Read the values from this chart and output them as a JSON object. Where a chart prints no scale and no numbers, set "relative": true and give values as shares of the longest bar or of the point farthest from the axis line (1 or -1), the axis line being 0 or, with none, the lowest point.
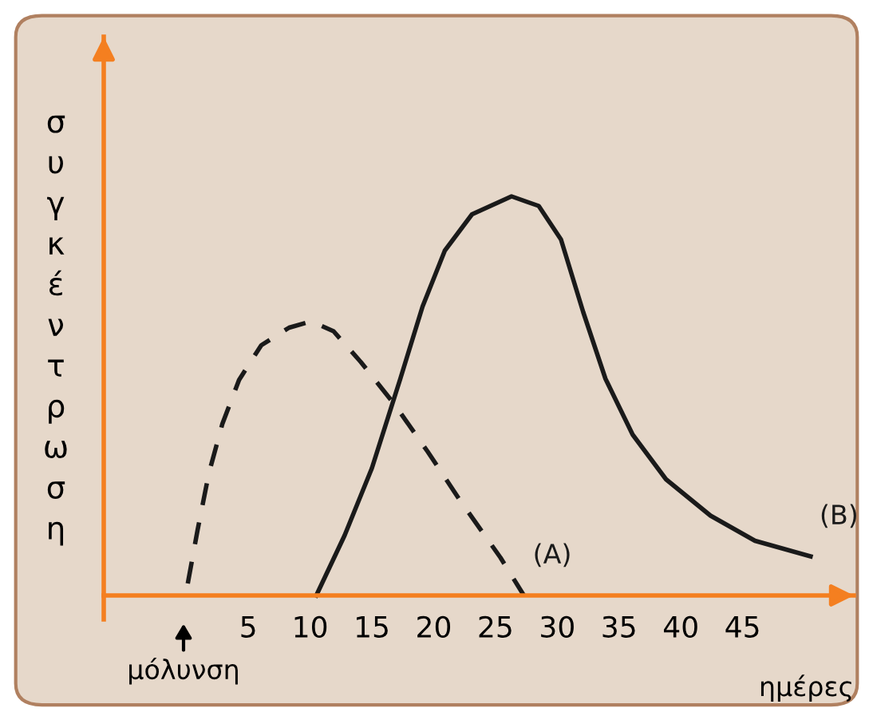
{
  "chart_data": {
    "type": "line",
    "relative": true,
    "xlabel": "ημέρες",
    "ylabel": "συγκέντρωση",
    "xlim": [
      -6.7,
      54
    ],
    "xticks": [
      5,
      10,
      15,
      20,
      25,
      30,
      35,
      40,
      45
    ],
    "grid": false,
    "legend": false,
    "marker": "none",
    "annotations": [
      "μόλυνση"
    ],
    "series": [
      {
        "name": "(A)",
        "color": "#1a1a1a",
        "line_style": "dashed",
        "x": [
          0.1,
          0.9,
          1.8,
          2.9,
          4.25,
          6.05,
          8.3,
          10.1,
          11.9,
          14.1,
          16.8,
          19.5,
          22.2,
          25.4,
          27.3
        ],
        "values": [
          0.03,
          0.165,
          0.305,
          0.43,
          0.54,
          0.627,
          0.671,
          0.687,
          0.662,
          0.585,
          0.48,
          0.361,
          0.235,
          0.095,
          0.0
        ]
      },
      {
        "name": "(B)",
        "color": "#1a1a1a",
        "line_style": "solid",
        "x": [
          10.5,
          12.8,
          15.0,
          17.3,
          19.1,
          20.9,
          23.1,
          26.3,
          28.5,
          30.3,
          32.1,
          33.9,
          36.1,
          38.8,
          42.4,
          46.0,
          50.5
        ],
        "values": [
          0.0,
          0.151,
          0.319,
          0.543,
          0.724,
          0.864,
          0.955,
          1.0,
          0.976,
          0.892,
          0.71,
          0.543,
          0.403,
          0.291,
          0.2,
          0.137,
          0.098
        ]
      }
    ]
  }
}
